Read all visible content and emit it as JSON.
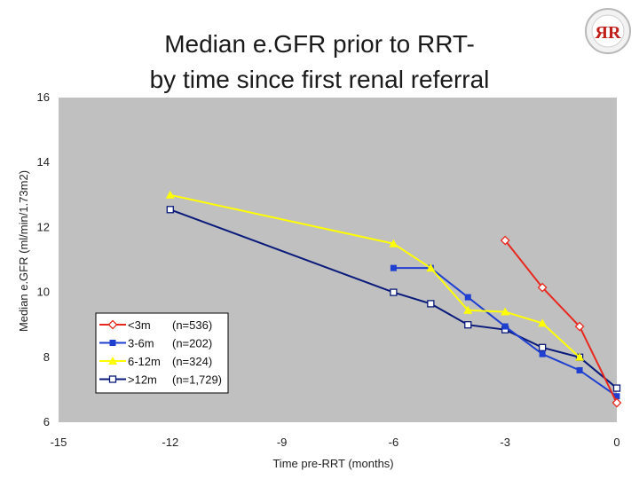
{
  "logo": {
    "text": "ЯR"
  },
  "chart_data": {
    "type": "line",
    "title": [
      "Median e.GFR prior to RRT-",
      "by time since first renal referral"
    ],
    "xlabel": "Time pre-RRT (months)",
    "ylabel": "Median e.GFR (ml/min/1.73m2)",
    "xlim": [
      -15,
      0
    ],
    "ylim": [
      6,
      16
    ],
    "xticks": [
      -15,
      -12,
      -9,
      -6,
      -3,
      0
    ],
    "yticks": [
      6,
      8,
      10,
      12,
      14,
      16
    ],
    "background": "#c0c0c0",
    "grid": false,
    "legend_position": "lower-left",
    "series": [
      {
        "name": "<3m",
        "n_label": "(n=536)",
        "color": "#e8281e",
        "marker": "diamond-open",
        "points": [
          [
            -3,
            11.6
          ],
          [
            -2,
            10.15
          ],
          [
            -1,
            8.95
          ],
          [
            0,
            6.6
          ]
        ]
      },
      {
        "name": "3-6m",
        "n_label": "(n=202)",
        "color": "#1f3fd0",
        "marker": "square-filled",
        "points": [
          [
            -6,
            10.75
          ],
          [
            -5,
            10.75
          ],
          [
            -4,
            9.85
          ],
          [
            -3,
            8.95
          ],
          [
            -2,
            8.1
          ],
          [
            -1,
            7.6
          ],
          [
            0,
            6.8
          ]
        ]
      },
      {
        "name": "6-12m",
        "n_label": "(n=324)",
        "color": "#ffff00",
        "marker": "triangle-filled",
        "points": [
          [
            -12,
            13.0
          ],
          [
            -6,
            11.5
          ],
          [
            -5,
            10.75
          ],
          [
            -4,
            9.45
          ],
          [
            -3,
            9.4
          ],
          [
            -2,
            9.05
          ],
          [
            -1,
            8.0
          ]
        ]
      },
      {
        "name": ">12m",
        "n_label": "(n=1,729)",
        "color": "#0a1a7a",
        "marker": "square-open",
        "points": [
          [
            -12,
            12.55
          ],
          [
            -6,
            10.0
          ],
          [
            -5,
            9.65
          ],
          [
            -4,
            9.0
          ],
          [
            -3,
            8.85
          ],
          [
            -2,
            8.3
          ],
          [
            -1,
            8.0
          ],
          [
            0,
            7.05
          ]
        ]
      }
    ]
  }
}
